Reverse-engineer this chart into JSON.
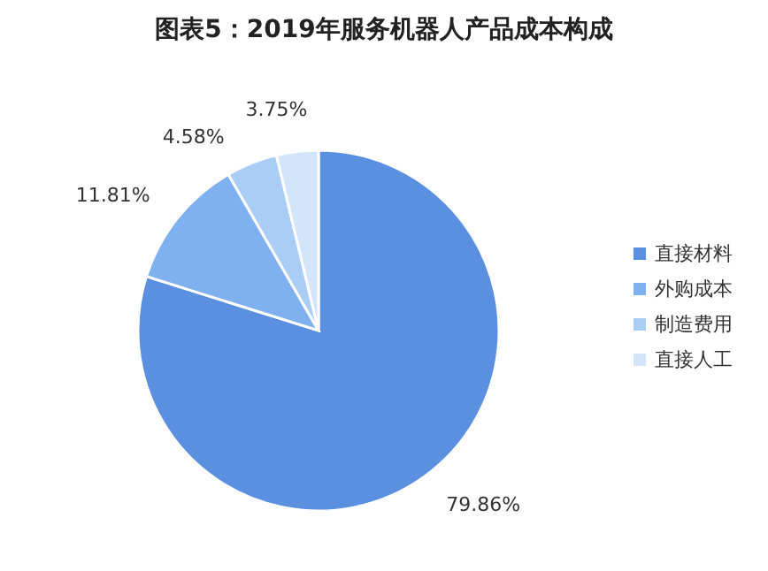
{
  "chart_data": {
    "type": "pie",
    "title": "图表5：2019年服务机器人产品成本构成",
    "categories": [
      "直接材料",
      "外购成本",
      "制造费用",
      "直接人工"
    ],
    "values": [
      79.86,
      11.81,
      4.58,
      3.75
    ],
    "value_labels": [
      "79.86%",
      "11.81%",
      "4.58%",
      "3.75%"
    ],
    "colors": [
      "#5b8fe0",
      "#7fb0ef",
      "#a9cdf5",
      "#d3e5fa"
    ],
    "legend": "right"
  }
}
